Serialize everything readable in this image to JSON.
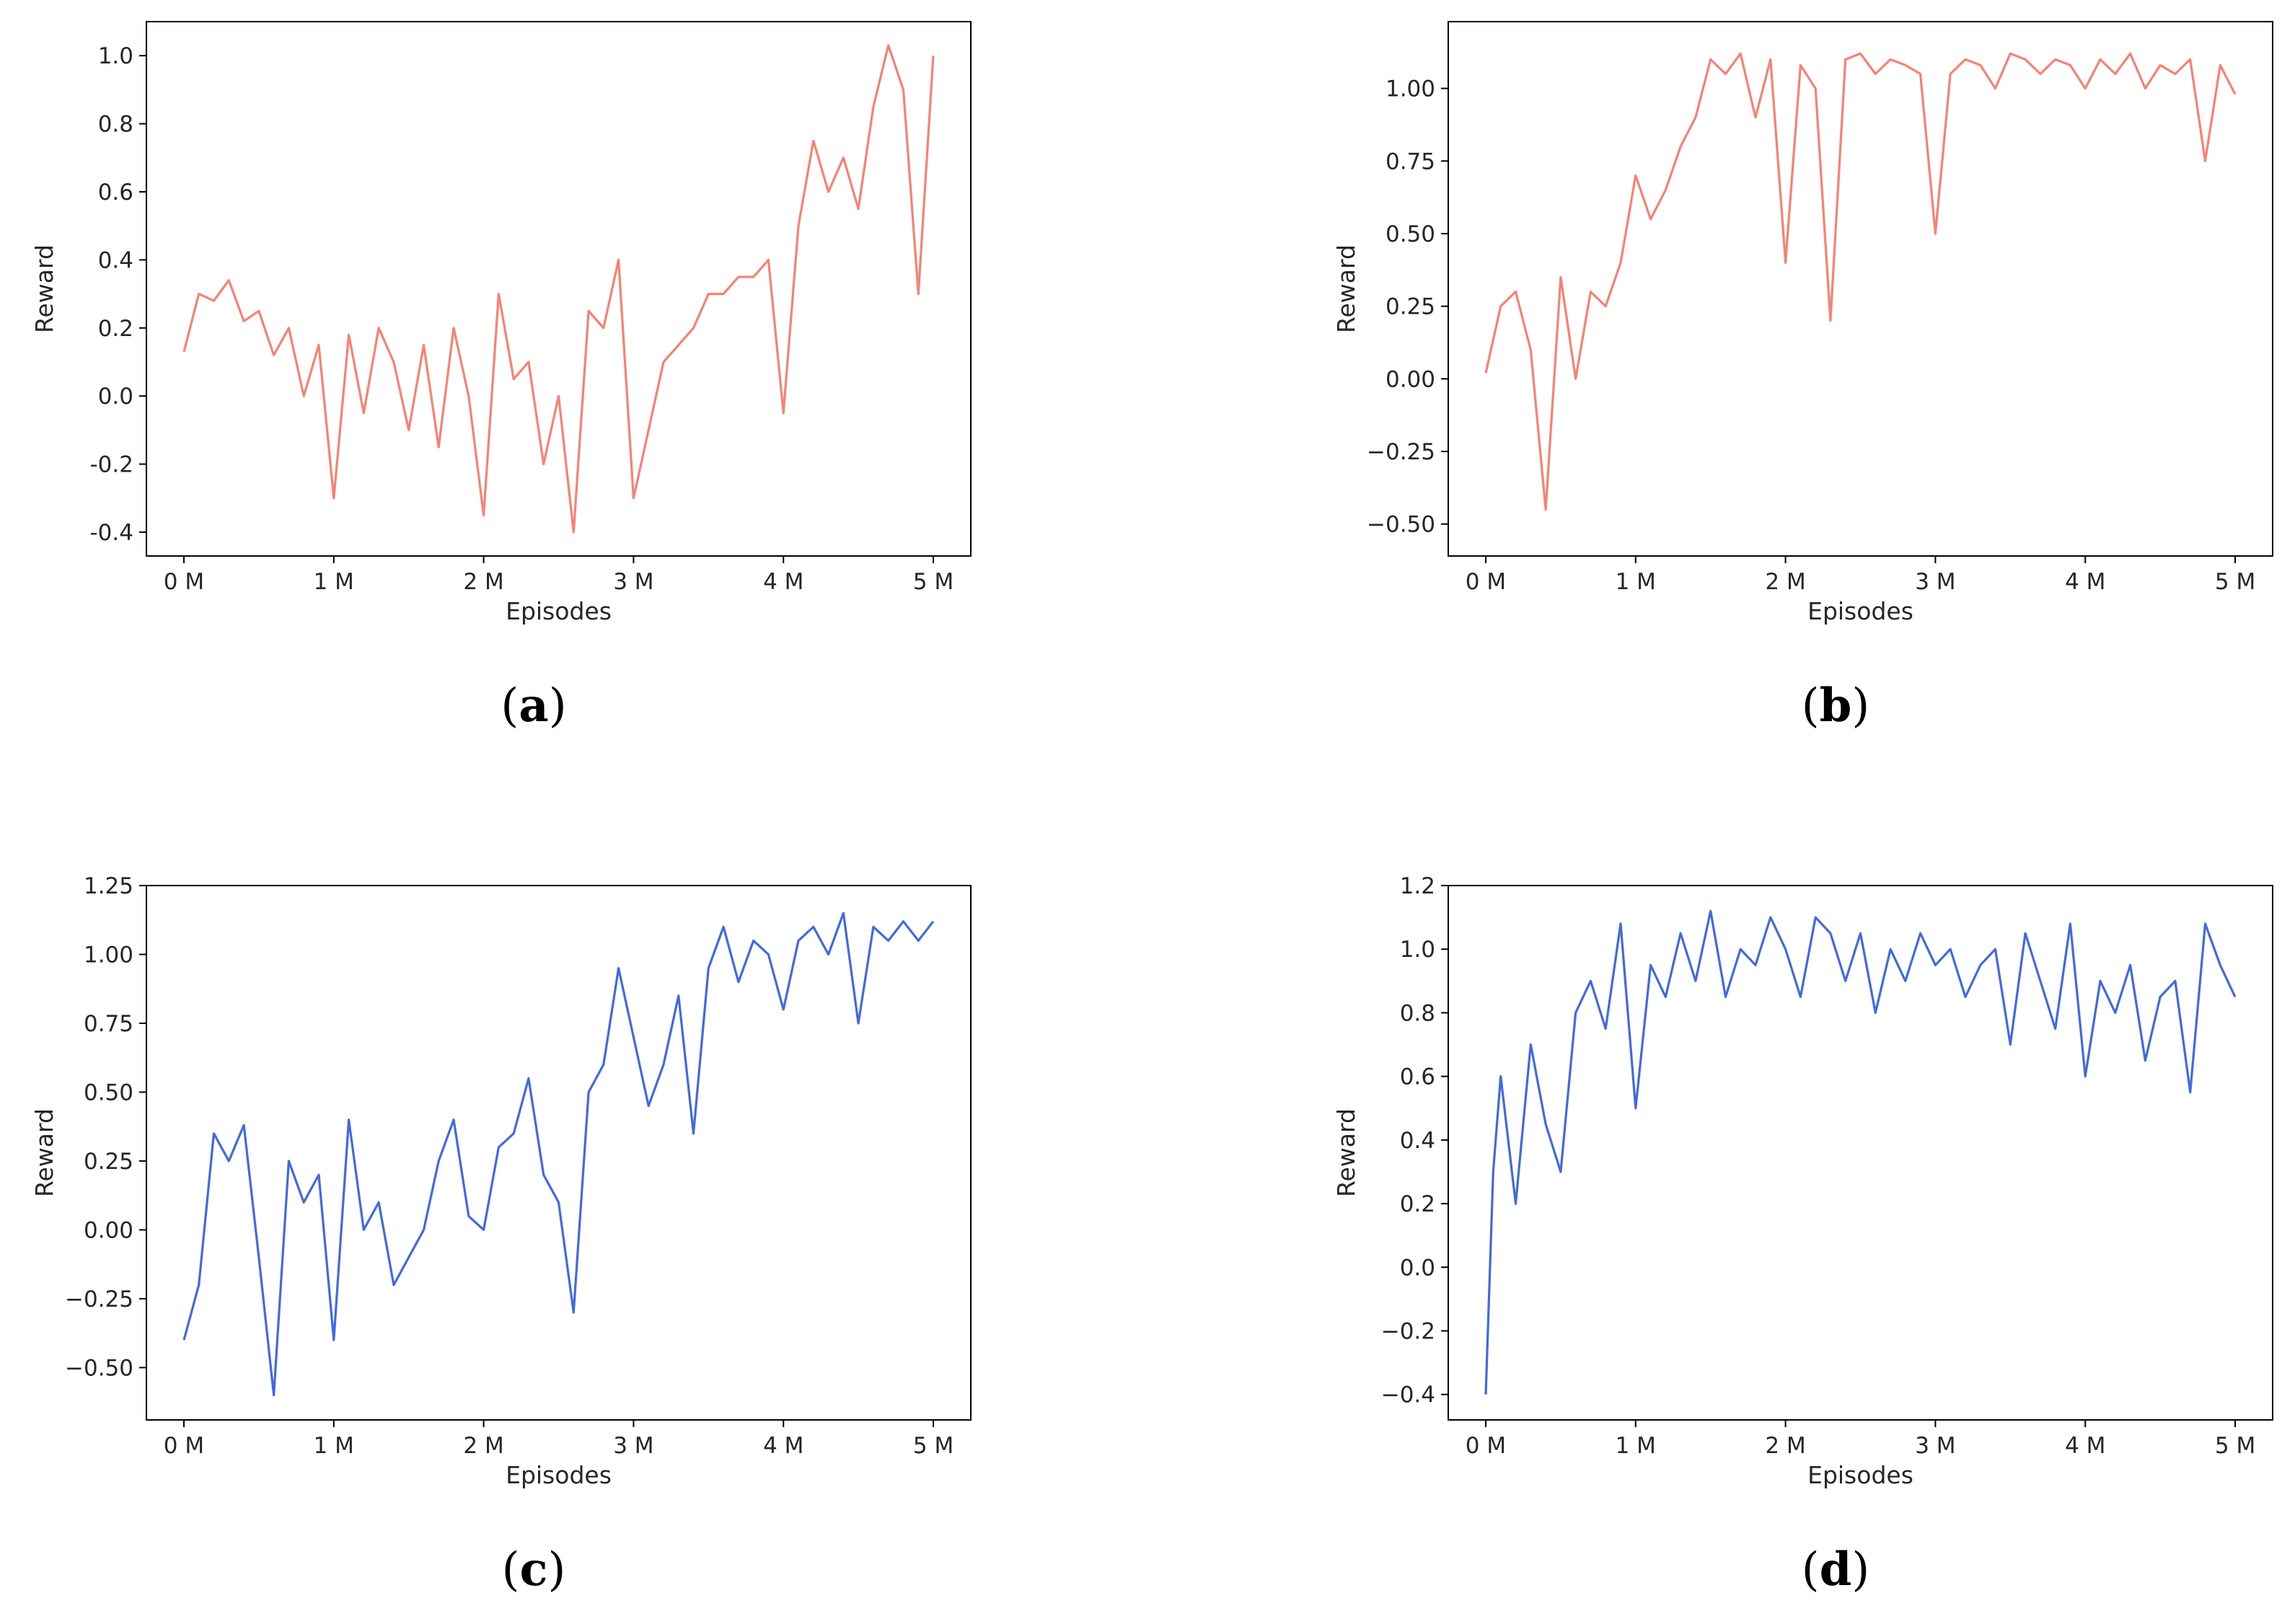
{
  "figure": {
    "captions": [
      "(a)",
      "(b)",
      "(c)",
      "(d)"
    ]
  },
  "chart_data": [
    {
      "id": "a",
      "caption": "a",
      "type": "line",
      "xlabel": "Episodes",
      "ylabel": "Reward",
      "xlim": [
        -0.25,
        5.25
      ],
      "ylim": [
        -0.47,
        1.1
      ],
      "xticks": [
        0,
        1,
        2,
        3,
        4,
        5
      ],
      "xticklabels": [
        "0 M",
        "1 M",
        "2 M",
        "3 M",
        "4 M",
        "5 M"
      ],
      "yticks": [
        -0.4,
        -0.2,
        0.0,
        0.2,
        0.4,
        0.6,
        0.8,
        1.0
      ],
      "yticklabels": [
        "-0.4",
        "-0.2",
        "0.0",
        "0.2",
        "0.4",
        "0.6",
        "0.8",
        "1.0"
      ],
      "color": "#fa8072",
      "x": [
        0,
        0.1,
        0.2,
        0.3,
        0.4,
        0.5,
        0.6,
        0.7,
        0.8,
        0.9,
        1.0,
        1.1,
        1.2,
        1.3,
        1.4,
        1.5,
        1.6,
        1.7,
        1.8,
        1.9,
        2.0,
        2.1,
        2.2,
        2.3,
        2.4,
        2.5,
        2.6,
        2.7,
        2.8,
        2.9,
        3.0,
        3.1,
        3.2,
        3.3,
        3.4,
        3.5,
        3.6,
        3.7,
        3.8,
        3.9,
        4.0,
        4.1,
        4.2,
        4.3,
        4.4,
        4.5,
        4.6,
        4.7,
        4.8,
        4.9,
        5.0
      ],
      "y": [
        0.13,
        0.3,
        0.28,
        0.34,
        0.22,
        0.25,
        0.12,
        0.2,
        0.0,
        0.15,
        -0.3,
        0.18,
        -0.05,
        0.2,
        0.1,
        -0.1,
        0.15,
        -0.15,
        0.2,
        0.0,
        -0.35,
        0.3,
        0.05,
        0.1,
        -0.2,
        0.0,
        -0.4,
        0.25,
        0.2,
        0.4,
        -0.3,
        -0.1,
        0.1,
        0.15,
        0.2,
        0.3,
        0.3,
        0.35,
        0.35,
        0.4,
        -0.05,
        0.5,
        0.75,
        0.6,
        0.7,
        0.55,
        0.85,
        1.03,
        0.9,
        0.3,
        1.0
      ]
    },
    {
      "id": "b",
      "caption": "b",
      "type": "line",
      "xlabel": "Episodes",
      "ylabel": "Reward",
      "xlim": [
        -0.25,
        5.25
      ],
      "ylim": [
        -0.61,
        1.23
      ],
      "xticks": [
        0,
        1,
        2,
        3,
        4,
        5
      ],
      "xticklabels": [
        "0 M",
        "1 M",
        "2 M",
        "3 M",
        "4 M",
        "5 M"
      ],
      "yticks": [
        -0.5,
        -0.25,
        0.0,
        0.25,
        0.5,
        0.75,
        1.0
      ],
      "yticklabels": [
        "−0.50",
        "−0.25",
        "0.00",
        "0.25",
        "0.50",
        "0.75",
        "1.00"
      ],
      "color": "#fa8072",
      "x": [
        0,
        0.1,
        0.2,
        0.3,
        0.4,
        0.5,
        0.6,
        0.7,
        0.8,
        0.9,
        1.0,
        1.1,
        1.2,
        1.3,
        1.4,
        1.5,
        1.6,
        1.7,
        1.8,
        1.9,
        2.0,
        2.1,
        2.2,
        2.3,
        2.4,
        2.5,
        2.6,
        2.7,
        2.8,
        2.9,
        3.0,
        3.1,
        3.2,
        3.3,
        3.4,
        3.5,
        3.6,
        3.7,
        3.8,
        3.9,
        4.0,
        4.1,
        4.2,
        4.3,
        4.4,
        4.5,
        4.6,
        4.7,
        4.8,
        4.9,
        5.0
      ],
      "y": [
        0.02,
        0.25,
        0.3,
        0.1,
        -0.45,
        0.35,
        0.0,
        0.3,
        0.25,
        0.4,
        0.7,
        0.55,
        0.65,
        0.8,
        0.9,
        1.1,
        1.05,
        1.12,
        0.9,
        1.1,
        0.4,
        1.08,
        1.0,
        0.2,
        1.1,
        1.12,
        1.05,
        1.1,
        1.08,
        1.05,
        0.5,
        1.05,
        1.1,
        1.08,
        1.0,
        1.12,
        1.1,
        1.05,
        1.1,
        1.08,
        1.0,
        1.1,
        1.05,
        1.12,
        1.0,
        1.08,
        1.05,
        1.1,
        0.75,
        1.08,
        0.98
      ]
    },
    {
      "id": "c",
      "caption": "c",
      "type": "line",
      "xlabel": "Episodes",
      "ylabel": "Reward",
      "xlim": [
        -0.25,
        5.25
      ],
      "ylim": [
        -0.69,
        1.25
      ],
      "xticks": [
        0,
        1,
        2,
        3,
        4,
        5
      ],
      "xticklabels": [
        "0 M",
        "1 M",
        "2 M",
        "3 M",
        "4 M",
        "5 M"
      ],
      "yticks": [
        -0.5,
        -0.25,
        0.0,
        0.25,
        0.5,
        0.75,
        1.0,
        1.25
      ],
      "yticklabels": [
        "−0.50",
        "−0.25",
        "0.00",
        "0.25",
        "0.50",
        "0.75",
        "1.00",
        "1.25"
      ],
      "color": "#4169e1",
      "x": [
        0,
        0.1,
        0.2,
        0.3,
        0.4,
        0.5,
        0.6,
        0.7,
        0.8,
        0.9,
        1.0,
        1.1,
        1.2,
        1.3,
        1.4,
        1.5,
        1.6,
        1.7,
        1.8,
        1.9,
        2.0,
        2.1,
        2.2,
        2.3,
        2.4,
        2.5,
        2.6,
        2.7,
        2.8,
        2.9,
        3.0,
        3.1,
        3.2,
        3.3,
        3.4,
        3.5,
        3.6,
        3.7,
        3.8,
        3.9,
        4.0,
        4.1,
        4.2,
        4.3,
        4.4,
        4.5,
        4.6,
        4.7,
        4.8,
        4.9,
        5.0
      ],
      "y": [
        -0.4,
        -0.2,
        0.35,
        0.25,
        0.38,
        -0.1,
        -0.6,
        0.25,
        0.1,
        0.2,
        -0.4,
        0.4,
        0.0,
        0.1,
        -0.2,
        -0.1,
        0.0,
        0.25,
        0.4,
        0.05,
        0.0,
        0.3,
        0.35,
        0.55,
        0.2,
        0.1,
        -0.3,
        0.5,
        0.6,
        0.95,
        0.7,
        0.45,
        0.6,
        0.85,
        0.35,
        0.95,
        1.1,
        0.9,
        1.05,
        1.0,
        0.8,
        1.05,
        1.1,
        1.0,
        1.15,
        0.75,
        1.1,
        1.05,
        1.12,
        1.05,
        1.12
      ]
    },
    {
      "id": "d",
      "caption": "d",
      "type": "line",
      "xlabel": "Episodes",
      "ylabel": "Reward",
      "xlim": [
        -0.25,
        5.25
      ],
      "ylim": [
        -0.48,
        1.2
      ],
      "xticks": [
        0,
        1,
        2,
        3,
        4,
        5
      ],
      "xticklabels": [
        "0 M",
        "1 M",
        "2 M",
        "3 M",
        "4 M",
        "5 M"
      ],
      "yticks": [
        -0.4,
        -0.2,
        0.0,
        0.2,
        0.4,
        0.6,
        0.8,
        1.0,
        1.2
      ],
      "yticklabels": [
        "−0.4",
        "−0.2",
        "0.0",
        "0.2",
        "0.4",
        "0.6",
        "0.8",
        "1.0",
        "1.2"
      ],
      "color": "#4169e1",
      "x": [
        0,
        0.05,
        0.1,
        0.2,
        0.3,
        0.4,
        0.5,
        0.6,
        0.7,
        0.8,
        0.9,
        1.0,
        1.1,
        1.2,
        1.3,
        1.4,
        1.5,
        1.6,
        1.7,
        1.8,
        1.9,
        2.0,
        2.1,
        2.2,
        2.3,
        2.4,
        2.5,
        2.6,
        2.7,
        2.8,
        2.9,
        3.0,
        3.1,
        3.2,
        3.3,
        3.4,
        3.5,
        3.6,
        3.7,
        3.8,
        3.9,
        4.0,
        4.1,
        4.2,
        4.3,
        4.4,
        4.5,
        4.6,
        4.7,
        4.8,
        4.9,
        5.0
      ],
      "y": [
        -0.4,
        0.3,
        0.6,
        0.2,
        0.7,
        0.45,
        0.3,
        0.8,
        0.9,
        0.75,
        1.08,
        0.5,
        0.95,
        0.85,
        1.05,
        0.9,
        1.12,
        0.85,
        1.0,
        0.95,
        1.1,
        1.0,
        0.85,
        1.1,
        1.05,
        0.9,
        1.05,
        0.8,
        1.0,
        0.9,
        1.05,
        0.95,
        1.0,
        0.85,
        0.95,
        1.0,
        0.7,
        1.05,
        0.9,
        0.75,
        1.08,
        0.6,
        0.9,
        0.8,
        0.95,
        0.65,
        0.85,
        0.9,
        0.55,
        1.08,
        0.95,
        0.85
      ]
    }
  ]
}
